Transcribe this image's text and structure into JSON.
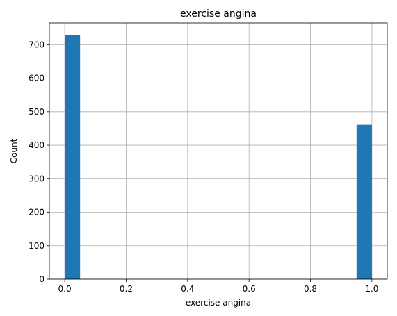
{
  "chart_data": {
    "type": "bar",
    "title": "exercise angina",
    "xlabel": "exercise angina",
    "ylabel": "Count",
    "xlim": [
      -0.05,
      1.05
    ],
    "ylim": [
      0,
      765
    ],
    "xticks": [
      0.0,
      0.2,
      0.4,
      0.6,
      0.8,
      1.0
    ],
    "xtick_labels": [
      "0.0",
      "0.2",
      "0.4",
      "0.6",
      "0.8",
      "1.0"
    ],
    "yticks": [
      0,
      100,
      200,
      300,
      400,
      500,
      600,
      700
    ],
    "ytick_labels": [
      "0",
      "100",
      "200",
      "300",
      "400",
      "500",
      "600",
      "700"
    ],
    "grid": true,
    "bars": [
      {
        "x0": 0.0,
        "x1": 0.05,
        "value": 729
      },
      {
        "x0": 0.95,
        "x1": 1.0,
        "value": 461
      }
    ],
    "colors": {
      "bar": "#1f77b4",
      "grid": "#b0b0b0",
      "axis": "#000000"
    }
  }
}
